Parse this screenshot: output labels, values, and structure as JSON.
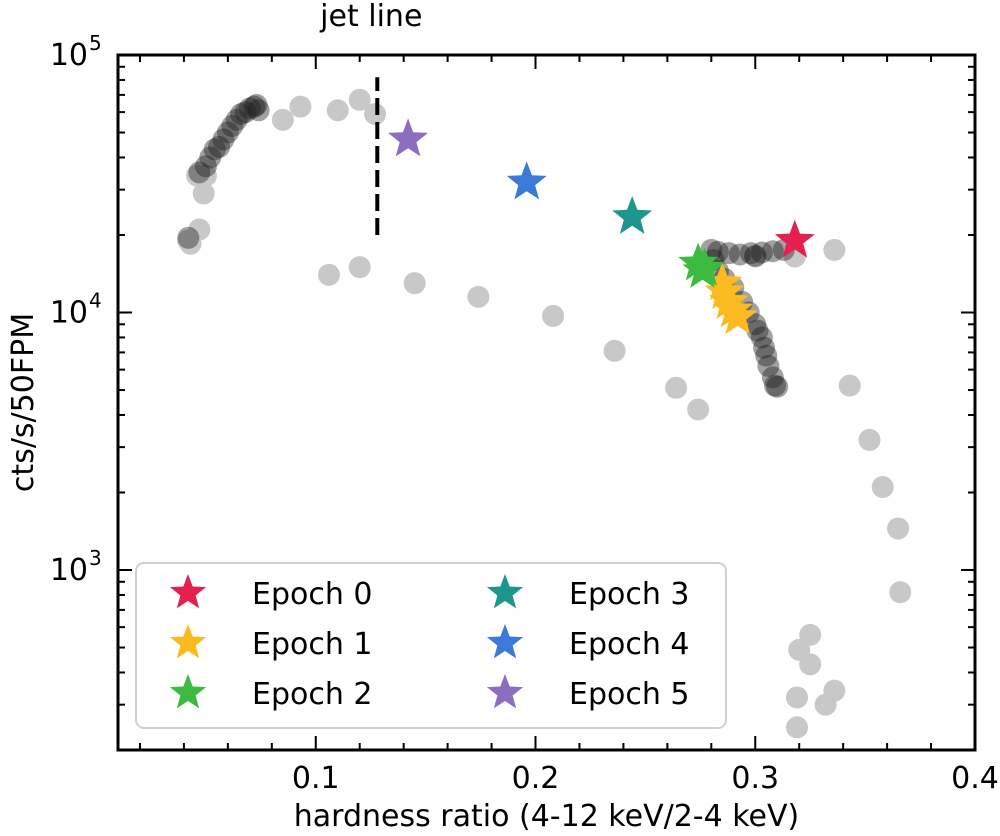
{
  "chart_data": {
    "type": "scatter",
    "xlabel": "hardness ratio (4-12 keV/2-4 keV)",
    "ylabel": "cts/s/50FPM",
    "xlim": [
      0.01,
      0.4
    ],
    "ylim": [
      200,
      100000
    ],
    "yscale": "log",
    "x_ticks": [
      {
        "value": 0.1,
        "label": "0.1"
      },
      {
        "value": 0.2,
        "label": "0.2"
      },
      {
        "value": 0.3,
        "label": "0.3"
      },
      {
        "value": 0.4,
        "label": "0.4"
      }
    ],
    "y_ticks": [
      {
        "value": 1000,
        "base": "10",
        "exp": "3"
      },
      {
        "value": 10000,
        "base": "10",
        "exp": "4"
      },
      {
        "value": 100000,
        "base": "10",
        "exp": "5"
      }
    ],
    "annotation": {
      "text": "jet line",
      "x": 0.128,
      "y_from": 20000,
      "y_to": 82000
    },
    "background_points": {
      "color": "#c8c8c8",
      "points": [
        [
          0.042,
          19000
        ],
        [
          0.043,
          18500
        ],
        [
          0.047,
          21000
        ],
        [
          0.046,
          34000
        ],
        [
          0.049,
          29000
        ],
        [
          0.05,
          34000
        ],
        [
          0.085,
          56000
        ],
        [
          0.093,
          63000
        ],
        [
          0.11,
          61000
        ],
        [
          0.12,
          67000
        ],
        [
          0.127,
          59000
        ],
        [
          0.106,
          14000
        ],
        [
          0.12,
          15000
        ],
        [
          0.145,
          13000
        ],
        [
          0.174,
          11500
        ],
        [
          0.208,
          9700
        ],
        [
          0.236,
          7100
        ],
        [
          0.264,
          5100
        ],
        [
          0.274,
          4200
        ],
        [
          0.3,
          16500
        ],
        [
          0.318,
          16500
        ],
        [
          0.336,
          17500
        ],
        [
          0.343,
          5200
        ],
        [
          0.352,
          3200
        ],
        [
          0.358,
          2100
        ],
        [
          0.365,
          1450
        ],
        [
          0.366,
          820
        ],
        [
          0.325,
          560
        ],
        [
          0.32,
          490
        ],
        [
          0.325,
          430
        ],
        [
          0.336,
          340
        ],
        [
          0.319,
          320
        ],
        [
          0.332,
          300
        ],
        [
          0.319,
          245
        ]
      ]
    },
    "dark_points": {
      "color": "#1e1e1e",
      "points": [
        [
          0.042,
          19500
        ],
        [
          0.047,
          35000
        ],
        [
          0.05,
          37000
        ],
        [
          0.052,
          40000
        ],
        [
          0.054,
          43000
        ],
        [
          0.056,
          44000
        ],
        [
          0.058,
          47000
        ],
        [
          0.06,
          50000
        ],
        [
          0.062,
          53000
        ],
        [
          0.064,
          56000
        ],
        [
          0.066,
          59000
        ],
        [
          0.068,
          60000
        ],
        [
          0.07,
          62000
        ],
        [
          0.072,
          63000
        ],
        [
          0.074,
          61000
        ],
        [
          0.073,
          64000
        ],
        [
          0.28,
          17500
        ],
        [
          0.283,
          17200
        ],
        [
          0.288,
          17000
        ],
        [
          0.293,
          16800
        ],
        [
          0.298,
          17000
        ],
        [
          0.303,
          17100
        ],
        [
          0.308,
          17300
        ],
        [
          0.313,
          17500
        ],
        [
          0.3,
          16600
        ],
        [
          0.281,
          16000
        ],
        [
          0.283,
          14500
        ],
        [
          0.286,
          13500
        ],
        [
          0.29,
          12500
        ],
        [
          0.294,
          11000
        ],
        [
          0.297,
          10000
        ],
        [
          0.3,
          9000
        ],
        [
          0.301,
          8500
        ],
        [
          0.303,
          8000
        ],
        [
          0.304,
          7300
        ],
        [
          0.305,
          6800
        ],
        [
          0.306,
          6200
        ],
        [
          0.308,
          5600
        ],
        [
          0.309,
          5200
        ],
        [
          0.31,
          5150
        ]
      ]
    },
    "series": [
      {
        "name": "Epoch 0",
        "color": "#e3204e",
        "points": [
          [
            0.318,
            19000
          ]
        ]
      },
      {
        "name": "Epoch 1",
        "color": "#fbba20",
        "points": [
          [
            0.286,
            12000
          ],
          [
            0.288,
            11000
          ],
          [
            0.29,
            10200
          ],
          [
            0.292,
            9600
          ],
          [
            0.285,
            13000
          ]
        ]
      },
      {
        "name": "Epoch 2",
        "color": "#3dba40",
        "points": [
          [
            0.274,
            15500
          ],
          [
            0.277,
            14800
          ],
          [
            0.276,
            14500
          ]
        ]
      },
      {
        "name": "Epoch 3",
        "color": "#1f9590",
        "points": [
          [
            0.244,
            23500
          ]
        ]
      },
      {
        "name": "Epoch 4",
        "color": "#3d7ad8",
        "points": [
          [
            0.196,
            32000
          ]
        ]
      },
      {
        "name": "Epoch 5",
        "color": "#8c6dbf",
        "points": [
          [
            0.142,
            47000
          ]
        ]
      }
    ],
    "legend": {
      "location": "lower-left",
      "columns": 2
    }
  }
}
